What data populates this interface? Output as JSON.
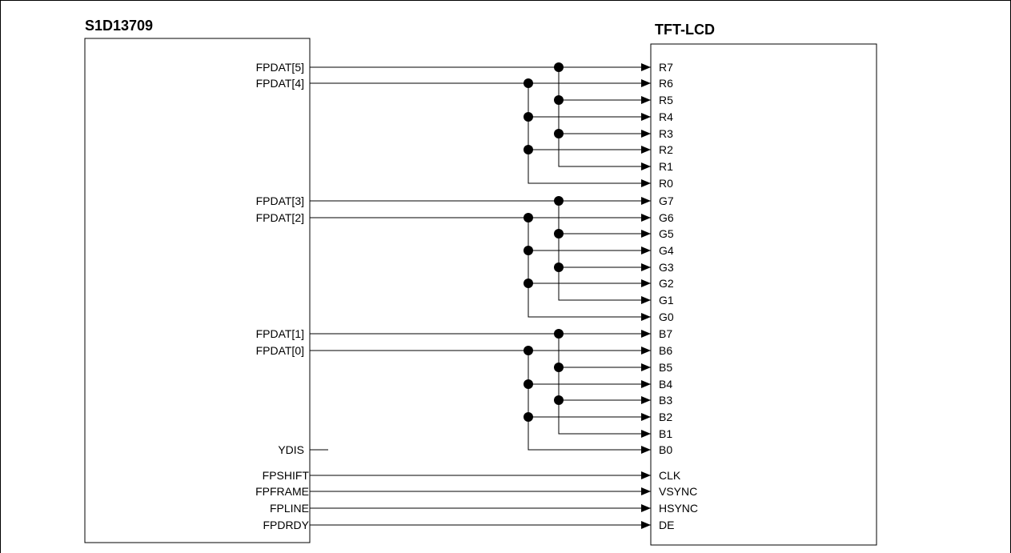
{
  "diagram": {
    "controller": {
      "title": "S1D13709",
      "pins": {
        "fpdat5": "FPDAT[5]",
        "fpdat4": "FPDAT[4]",
        "fpdat3": "FPDAT[3]",
        "fpdat2": "FPDAT[2]",
        "fpdat1": "FPDAT[1]",
        "fpdat0": "FPDAT[0]",
        "ydis": "YDIS",
        "fpshift": "FPSHIFT",
        "fpframe": "FPFRAME",
        "fpline": "FPLINE",
        "fpdrdy": "FPDRDY"
      }
    },
    "panel": {
      "title": "TFT-LCD",
      "red_pins": [
        "R7",
        "R6",
        "R5",
        "R4",
        "R3",
        "R2",
        "R1",
        "R0"
      ],
      "green_pins": [
        "G7",
        "G6",
        "G5",
        "G4",
        "G3",
        "G2",
        "G1",
        "G0"
      ],
      "blue_pins": [
        "B7",
        "B6",
        "B5",
        "B4",
        "B3",
        "B2",
        "B1",
        "B0"
      ],
      "control_pins": [
        "CLK",
        "VSYNC",
        "HSYNC",
        "DE"
      ]
    }
  }
}
